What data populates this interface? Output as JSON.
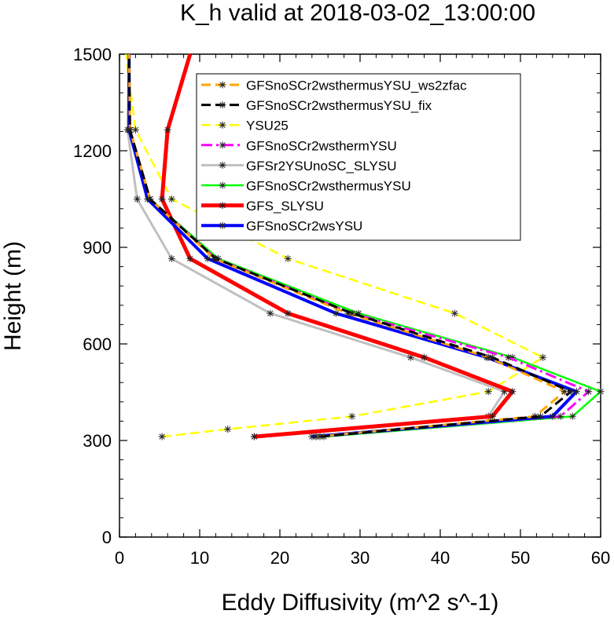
{
  "chart_data": {
    "type": "line",
    "title": "K_h valid at 2018-03-02_13:00:00",
    "xlabel": "Eddy Diffusivity (m^2 s^-1)",
    "ylabel": "Height (m)",
    "xlim": [
      0,
      60
    ],
    "ylim": [
      0,
      1500
    ],
    "xticks": [
      0,
      10,
      20,
      30,
      40,
      50,
      60
    ],
    "yticks": [
      0,
      300,
      600,
      900,
      1200,
      1500
    ],
    "legend_position": "top-right",
    "grid": false,
    "series": [
      {
        "name": "GFSnoSCr2wsthermusYSU_ws2zfac",
        "color": "#FFA500",
        "dash": "long-dash",
        "y": [
          312,
          375,
          452,
          558,
          695,
          865,
          1050,
          1265,
          1500
        ],
        "x": [
          24.5,
          51.8,
          55.5,
          46.0,
          28.5,
          11.8,
          3.8,
          1.3,
          1.2
        ]
      },
      {
        "name": "GFSnoSCr2wsthermusYSU_fix",
        "color": "#000000",
        "dash": "long-dash",
        "y": [
          312,
          375,
          452,
          558,
          695,
          865,
          1050,
          1265,
          1500
        ],
        "x": [
          25.0,
          52.5,
          56.3,
          46.5,
          29.0,
          12.0,
          3.8,
          1.3,
          1.2
        ]
      },
      {
        "name": "YSU25",
        "color": "#FFFF00",
        "dash": "long-dash",
        "y": [
          312,
          335,
          375,
          452,
          558,
          695,
          865,
          1050,
          1265,
          1500
        ],
        "x": [
          5.3,
          13.5,
          29.0,
          46.0,
          52.8,
          41.8,
          21.0,
          6.5,
          2.0,
          0.8
        ]
      },
      {
        "name": "GFSnoSCr2wsthermYSU",
        "color": "#FF00FF",
        "dash": "dash-dot",
        "y": [
          312,
          375,
          452,
          558,
          695,
          865,
          1050,
          1265,
          1500
        ],
        "x": [
          24.5,
          55.0,
          58.5,
          48.5,
          29.0,
          12.0,
          3.8,
          1.3,
          1.2
        ]
      },
      {
        "name": "GFSr2YSUnoSC_SLYSU",
        "color": "#C0C0C0",
        "dash": "solid",
        "y": [
          312,
          375,
          452,
          558,
          695,
          865,
          1050,
          1265,
          1500
        ],
        "x": [
          16.8,
          46.0,
          48.0,
          36.3,
          18.8,
          6.5,
          2.2,
          1.0,
          1.2
        ]
      },
      {
        "name": "GFSnoSCr2wsthermusYSU",
        "color": "#00FF00",
        "dash": "solid",
        "y": [
          312,
          375,
          452,
          558,
          695,
          865,
          1050,
          1265,
          1500
        ],
        "x": [
          25.5,
          56.5,
          60.0,
          49.0,
          29.8,
          12.3,
          3.8,
          1.3,
          1.2
        ]
      },
      {
        "name": "GFS_SLYSU",
        "color": "#FF0000",
        "dash": "solid",
        "y": [
          312,
          375,
          452,
          558,
          695,
          865,
          1050,
          1265,
          1500
        ],
        "x": [
          16.8,
          46.5,
          49.0,
          38.0,
          21.0,
          8.8,
          5.3,
          6.0,
          8.8
        ]
      },
      {
        "name": "GFSnoSCr2wsYSU",
        "color": "#0000FF",
        "dash": "solid",
        "y": [
          312,
          375,
          452,
          558,
          695,
          865,
          1050,
          1265,
          1500
        ],
        "x": [
          24.0,
          54.0,
          57.0,
          45.8,
          27.0,
          11.0,
          3.5,
          1.2,
          1.2
        ]
      }
    ]
  }
}
